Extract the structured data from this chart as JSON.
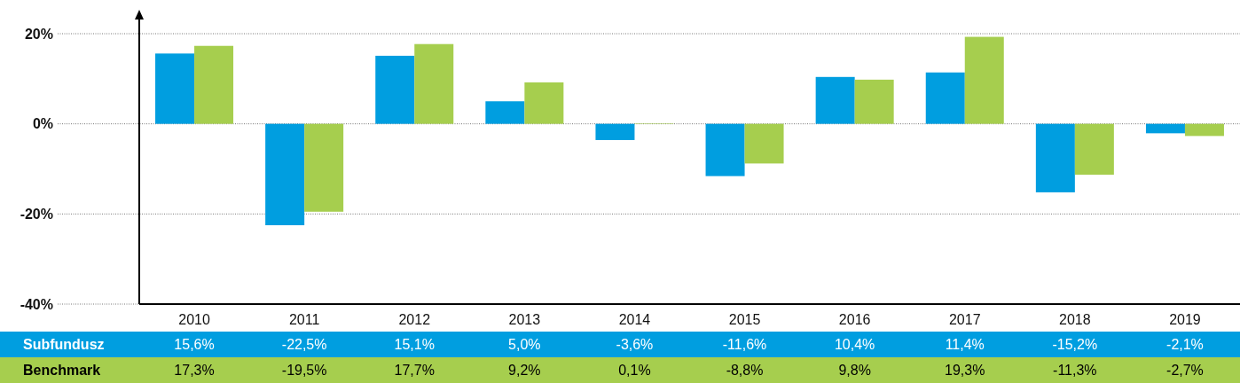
{
  "chart_data": {
    "type": "bar",
    "categories": [
      "2010",
      "2011",
      "2012",
      "2013",
      "2014",
      "2015",
      "2016",
      "2017",
      "2018",
      "2019"
    ],
    "series": [
      {
        "name": "Subfundusz",
        "color": "#009ee0",
        "values": [
          15.6,
          -22.5,
          15.1,
          5.0,
          -3.6,
          -11.6,
          10.4,
          11.4,
          -15.2,
          -2.1
        ],
        "value_labels": [
          "15,6%",
          "-22,5%",
          "15,1%",
          "5,0%",
          "-3,6%",
          "-11,6%",
          "10,4%",
          "11,4%",
          "-15,2%",
          "-2,1%"
        ]
      },
      {
        "name": "Benchmark",
        "color": "#a6ce4e",
        "values": [
          17.3,
          -19.5,
          17.7,
          9.2,
          0.1,
          -8.8,
          9.8,
          19.3,
          -11.3,
          -2.7
        ],
        "value_labels": [
          "17,3%",
          "-19,5%",
          "17,7%",
          "9,2%",
          "0,1%",
          "-8,8%",
          "9,8%",
          "19,3%",
          "-11,3%",
          "-2,7%"
        ]
      }
    ],
    "ylim": [
      -40,
      20
    ],
    "yticks": [
      {
        "value": 20,
        "label": "20%"
      },
      {
        "value": 0,
        "label": "0%"
      },
      {
        "value": -20,
        "label": "-20%"
      },
      {
        "value": -40,
        "label": "-40%"
      }
    ],
    "grid": "y"
  }
}
